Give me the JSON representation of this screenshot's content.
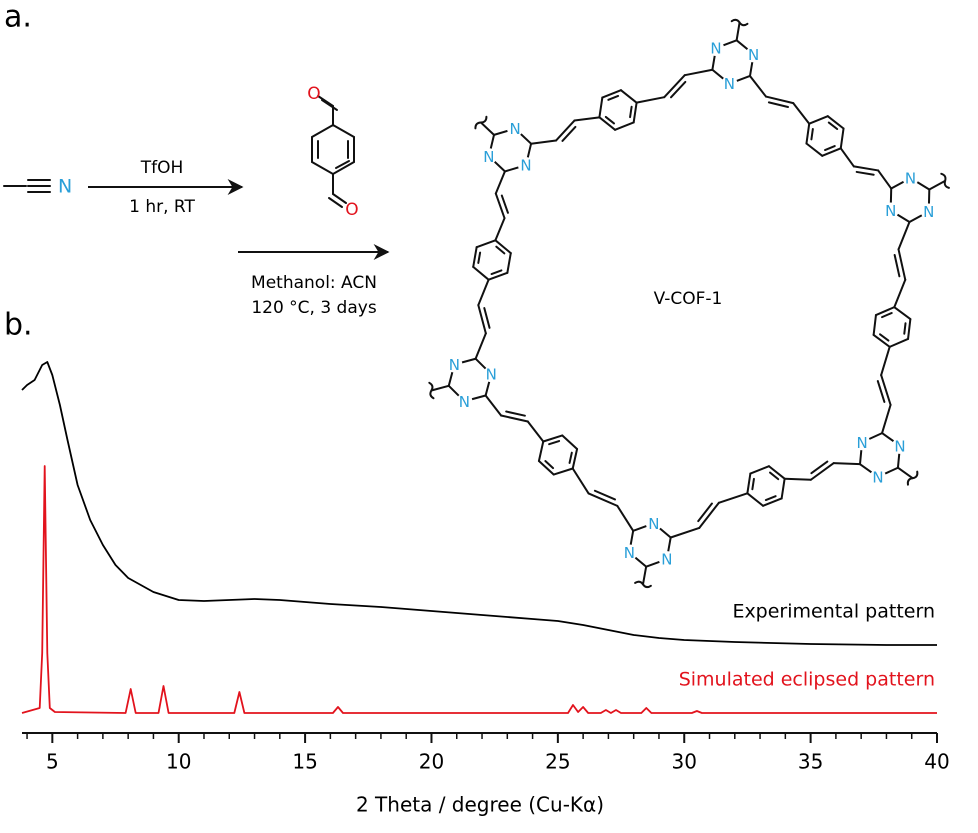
{
  "panel_labels": {
    "a": "a.",
    "b": "b."
  },
  "scheme": {
    "reagent_atom": "N",
    "step1_top": "TfOH",
    "step1_bottom": "1 hr, RT",
    "step2_line1": "Methanol: ACN",
    "step2_line2": "120 °C, 3 days",
    "oxygen": "O",
    "nitrogen": "N",
    "product": "V-COF-1"
  },
  "chart_data": {
    "type": "line",
    "xlabel": "2 Theta / degree (Cu-Kα)",
    "xlim": [
      3.8,
      40
    ],
    "ylim": [
      0,
      400
    ],
    "xticks": [
      5,
      10,
      15,
      20,
      25,
      30,
      35,
      40
    ],
    "xminorticks": [
      4,
      6,
      7,
      8,
      9,
      11,
      12,
      13,
      14,
      16,
      17,
      18,
      19,
      21,
      22,
      23,
      24,
      26,
      27,
      28,
      29,
      31,
      32,
      33,
      34,
      36,
      37,
      38,
      39
    ],
    "series": [
      {
        "name": "Experimental pattern",
        "color": "#000000",
        "x": [
          3.8,
          4.0,
          4.3,
          4.6,
          4.8,
          5.0,
          5.3,
          5.6,
          6.0,
          6.5,
          7.0,
          7.5,
          8,
          9,
          10,
          11,
          12,
          13,
          14,
          15,
          16,
          18,
          20,
          22,
          24,
          25,
          26,
          27,
          28,
          29,
          30,
          32,
          35,
          38,
          40
        ],
        "values": [
          343,
          348,
          353,
          368,
          371,
          358,
          328,
          293,
          248,
          213,
          188,
          168,
          155,
          141,
          133,
          132,
          133,
          134,
          133,
          131,
          129,
          126,
          122,
          118,
          114,
          112,
          108,
          103,
          98,
          95,
          93,
          91,
          89,
          88,
          88
        ]
      },
      {
        "name": "Simulated eclipsed pattern",
        "color": "#e2131d",
        "x": [
          3.8,
          4.5,
          4.6,
          4.7,
          4.8,
          4.9,
          5.1,
          7.9,
          8.1,
          8.3,
          9.2,
          9.4,
          9.6,
          12.2,
          12.4,
          12.6,
          16.1,
          16.3,
          16.5,
          25.4,
          25.6,
          25.8,
          26.0,
          26.2,
          26.7,
          26.9,
          27.1,
          27.3,
          27.5,
          28.3,
          28.5,
          28.7,
          30.3,
          30.5,
          30.7,
          40
        ],
        "values": [
          20,
          25,
          80,
          267,
          80,
          25,
          21,
          20,
          44,
          20,
          20,
          47,
          20,
          20,
          41,
          20,
          20,
          26,
          20,
          20,
          28,
          21,
          26,
          20,
          20,
          23,
          20,
          23,
          20,
          20,
          25,
          20,
          20,
          22,
          20,
          20
        ]
      }
    ]
  }
}
